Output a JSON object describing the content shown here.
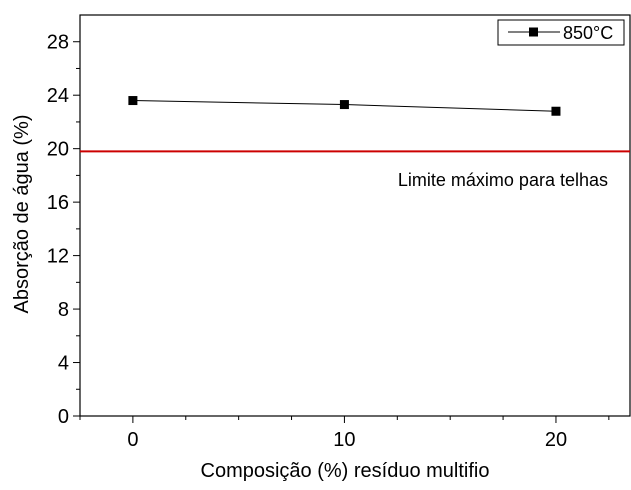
{
  "chart_data": {
    "type": "line",
    "title": "",
    "xlabel": "Composição (%) resíduo multifio",
    "ylabel": "Absorção de água (%)",
    "xlim": [
      -2.5,
      23.5
    ],
    "ylim": [
      0,
      30
    ],
    "xticks": [
      0,
      10,
      20
    ],
    "xtick_labels": [
      "0",
      "10",
      "20"
    ],
    "yticks": [
      0,
      4,
      8,
      12,
      16,
      20,
      24,
      28
    ],
    "ytick_labels": [
      "0",
      "4",
      "8",
      "12",
      "16",
      "20",
      "24",
      "28"
    ],
    "series": [
      {
        "name": "850°C",
        "x": [
          0,
          10,
          20
        ],
        "y": [
          23.6,
          23.3,
          22.8
        ],
        "color": "#000000",
        "marker": "square"
      }
    ],
    "reference_line": {
      "y": 19.8,
      "color": "#cc0000",
      "label": "Limite máximo para telhas"
    },
    "legend_position": "top-right",
    "grid": false
  }
}
